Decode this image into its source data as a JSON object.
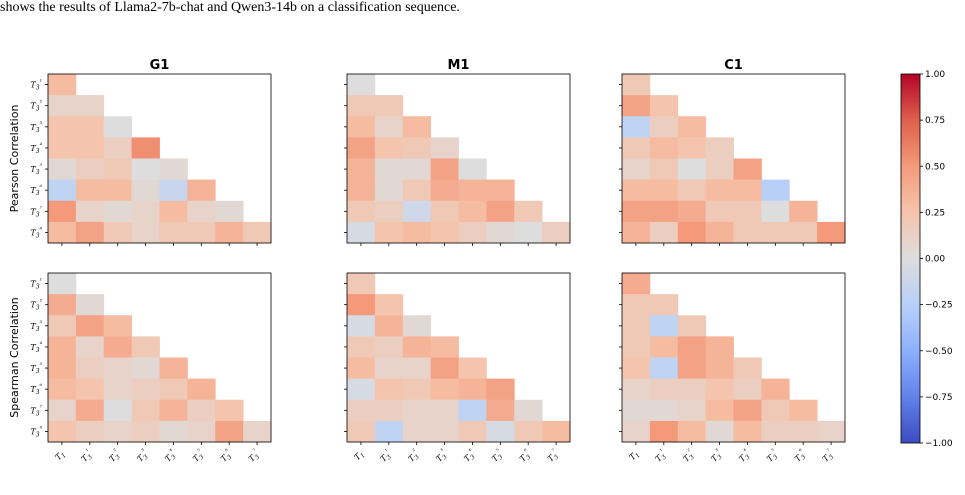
{
  "caption": "shows the results of Llama2-7b-chat and Qwen3-14b on a classification sequence.",
  "colors": {
    "min": "#3b4cc0",
    "mid": "#dddddd",
    "max": "#b40426"
  },
  "chart_data": {
    "type": "heatmap",
    "colormap": "coolwarm",
    "vmin": -1,
    "vmax": 1,
    "colorbar_ticks": [
      "1.00",
      "0.75",
      "0.50",
      "0.25",
      "0.00",
      "−0.25",
      "−0.50",
      "−0.75",
      "−1.00"
    ],
    "col_titles": [
      "G1",
      "M1",
      "C1"
    ],
    "row_labels": [
      "Pearson Correlation",
      "Spearman Correlation"
    ],
    "y_ticks": [
      "T3¹",
      "T3²",
      "T3³",
      "T3⁴",
      "T3⁵",
      "T3⁶",
      "T3⁷",
      "T3⁸"
    ],
    "x_ticks": [
      "T1",
      "T3¹",
      "T3²",
      "T3³",
      "T3⁴",
      "T3⁵",
      "T3⁶",
      "T3⁷"
    ],
    "panels": [
      {
        "metric": "Pearson Correlation",
        "model": "G1",
        "values": [
          [
            0.3
          ],
          [
            0.1,
            0.1
          ],
          [
            0.25,
            0.25,
            0.0
          ],
          [
            0.25,
            0.25,
            0.15,
            0.55
          ],
          [
            0.05,
            0.15,
            0.2,
            0.0,
            0.05
          ],
          [
            -0.2,
            0.3,
            0.3,
            0.05,
            -0.15,
            0.35
          ],
          [
            0.5,
            0.1,
            0.05,
            0.1,
            0.3,
            0.1,
            0.05
          ],
          [
            0.3,
            0.45,
            0.2,
            0.1,
            0.2,
            0.2,
            0.35,
            0.2
          ]
        ]
      },
      {
        "metric": "Pearson Correlation",
        "model": "M1",
        "values": [
          [
            0.0
          ],
          [
            0.2,
            0.2
          ],
          [
            0.3,
            0.1,
            0.3
          ],
          [
            0.45,
            0.25,
            0.2,
            0.1
          ],
          [
            0.35,
            0.05,
            0.05,
            0.45,
            0.0
          ],
          [
            0.35,
            0.05,
            0.2,
            0.4,
            0.35,
            0.35
          ],
          [
            0.2,
            0.15,
            -0.1,
            0.2,
            0.3,
            0.45,
            0.2
          ],
          [
            -0.05,
            0.25,
            0.3,
            0.25,
            0.15,
            0.05,
            0.0,
            0.15
          ]
        ]
      },
      {
        "metric": "Pearson Correlation",
        "model": "C1",
        "values": [
          [
            0.2
          ],
          [
            0.45,
            0.25
          ],
          [
            -0.2,
            0.15,
            0.3
          ],
          [
            0.2,
            0.3,
            0.25,
            0.15
          ],
          [
            0.1,
            0.2,
            0.0,
            0.15,
            0.45
          ],
          [
            0.3,
            0.3,
            0.2,
            0.3,
            0.3,
            -0.25
          ],
          [
            0.45,
            0.45,
            0.4,
            0.2,
            0.2,
            0.0,
            0.35
          ],
          [
            0.35,
            0.15,
            0.5,
            0.35,
            0.2,
            0.2,
            0.2,
            0.5
          ]
        ]
      },
      {
        "metric": "Spearman Correlation",
        "model": "G1",
        "values": [
          [
            0.0
          ],
          [
            0.4,
            0.05
          ],
          [
            0.2,
            0.45,
            0.3
          ],
          [
            0.35,
            0.1,
            0.4,
            0.2
          ],
          [
            0.35,
            0.15,
            0.1,
            0.05,
            0.35
          ],
          [
            0.3,
            0.25,
            0.1,
            0.15,
            0.2,
            0.35
          ],
          [
            0.1,
            0.4,
            0.0,
            0.2,
            0.35,
            0.15,
            0.25
          ],
          [
            0.25,
            0.15,
            0.1,
            0.15,
            0.05,
            0.1,
            0.45,
            0.1
          ]
        ]
      },
      {
        "metric": "Spearman Correlation",
        "model": "M1",
        "values": [
          [
            0.2
          ],
          [
            0.5,
            0.25
          ],
          [
            -0.05,
            0.35,
            0.05
          ],
          [
            0.2,
            0.15,
            0.35,
            0.3
          ],
          [
            0.3,
            0.1,
            0.1,
            0.45,
            0.25
          ],
          [
            -0.05,
            0.25,
            0.2,
            0.3,
            0.35,
            0.45
          ],
          [
            0.15,
            0.15,
            0.1,
            0.1,
            -0.2,
            0.4,
            0.05
          ],
          [
            0.2,
            -0.2,
            0.1,
            0.1,
            0.2,
            -0.05,
            0.2,
            0.3
          ]
        ]
      },
      {
        "metric": "Spearman Correlation",
        "model": "C1",
        "values": [
          [
            0.4
          ],
          [
            0.2,
            0.2
          ],
          [
            0.2,
            -0.2,
            0.2
          ],
          [
            0.2,
            0.3,
            0.45,
            0.35
          ],
          [
            0.25,
            -0.2,
            0.45,
            0.35,
            0.2
          ],
          [
            0.1,
            0.15,
            0.15,
            0.25,
            0.15,
            0.35
          ],
          [
            0.05,
            0.05,
            0.1,
            0.3,
            0.45,
            0.2,
            0.3
          ],
          [
            0.1,
            0.5,
            0.3,
            0.05,
            0.3,
            0.15,
            0.15,
            0.1
          ]
        ]
      }
    ]
  }
}
